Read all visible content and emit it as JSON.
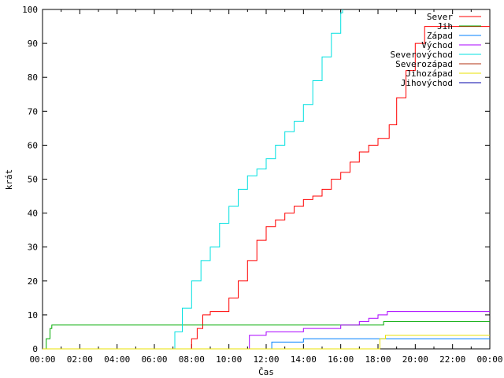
{
  "chart_data": {
    "type": "line",
    "title": "",
    "xlabel": "Čas",
    "ylabel": "krát",
    "xlim": [
      0,
      24
    ],
    "ylim": [
      0,
      100
    ],
    "x_ticks": [
      "00:00",
      "02:00",
      "04:00",
      "06:00",
      "08:00",
      "10:00",
      "12:00",
      "14:00",
      "16:00",
      "18:00",
      "20:00",
      "22:00",
      "00:00"
    ],
    "y_ticks": [
      0,
      10,
      20,
      30,
      40,
      50,
      60,
      70,
      80,
      90,
      100
    ],
    "grid": false,
    "legend_position": "top-right",
    "series": [
      {
        "name": "Sever",
        "color": "#ff0000",
        "x": [
          0,
          7.7,
          8.0,
          8.3,
          8.6,
          9.0,
          9.5,
          10.0,
          10.5,
          11.0,
          11.5,
          12.0,
          12.5,
          13.0,
          13.5,
          14.0,
          14.5,
          15.0,
          15.5,
          16.0,
          16.5,
          17.0,
          17.5,
          18.0,
          18.3,
          18.6,
          19.0,
          19.5,
          20.0,
          20.5,
          21.0,
          24.0
        ],
        "values": [
          0,
          0,
          3,
          6,
          10,
          11,
          11,
          15,
          20,
          26,
          32,
          36,
          38,
          40,
          42,
          44,
          45,
          47,
          50,
          52,
          55,
          58,
          60,
          62,
          62,
          66,
          74,
          82,
          90,
          95,
          95,
          95
        ]
      },
      {
        "name": "Jih",
        "color": "#00aa00",
        "x": [
          0,
          0.2,
          0.4,
          0.5,
          18.0,
          18.3,
          24.0
        ],
        "values": [
          0,
          3,
          6,
          7,
          7,
          8,
          8
        ]
      },
      {
        "name": "Západ",
        "color": "#0080ff",
        "x": [
          0,
          12.2,
          12.3,
          13.0,
          14.0,
          18.0,
          24.0
        ],
        "values": [
          0,
          0,
          2,
          2,
          3,
          3,
          3
        ]
      },
      {
        "name": "Východ",
        "color": "#aa00ff",
        "x": [
          0,
          11.0,
          11.1,
          12.0,
          13.0,
          14.0,
          15.0,
          16.0,
          17.0,
          17.5,
          18.0,
          18.5,
          19.0,
          24.0
        ],
        "values": [
          0,
          0,
          4,
          5,
          5,
          6,
          6,
          7,
          8,
          9,
          10,
          11,
          11,
          11
        ]
      },
      {
        "name": "Severovýchod",
        "color": "#00e0e0",
        "x": [
          0,
          6.9,
          7.1,
          7.5,
          8.0,
          8.5,
          9.0,
          9.5,
          10.0,
          10.5,
          11.0,
          11.5,
          12.0,
          12.5,
          13.0,
          13.5,
          14.0,
          14.5,
          15.0,
          15.5,
          16.0,
          16.1
        ],
        "values": [
          0,
          0,
          5,
          12,
          20,
          26,
          30,
          37,
          42,
          47,
          51,
          53,
          56,
          60,
          64,
          67,
          72,
          79,
          86,
          93,
          99,
          100
        ]
      },
      {
        "name": "Severozápad",
        "color": "#b03010",
        "x": [],
        "values": []
      },
      {
        "name": "Jihozápad",
        "color": "#e8e000",
        "x": [
          0,
          17.9,
          18.1,
          18.4,
          24.0
        ],
        "values": [
          0,
          0,
          3,
          4,
          4
        ]
      },
      {
        "name": "Jihovýchod",
        "color": "#0000aa",
        "x": [],
        "values": []
      }
    ]
  }
}
